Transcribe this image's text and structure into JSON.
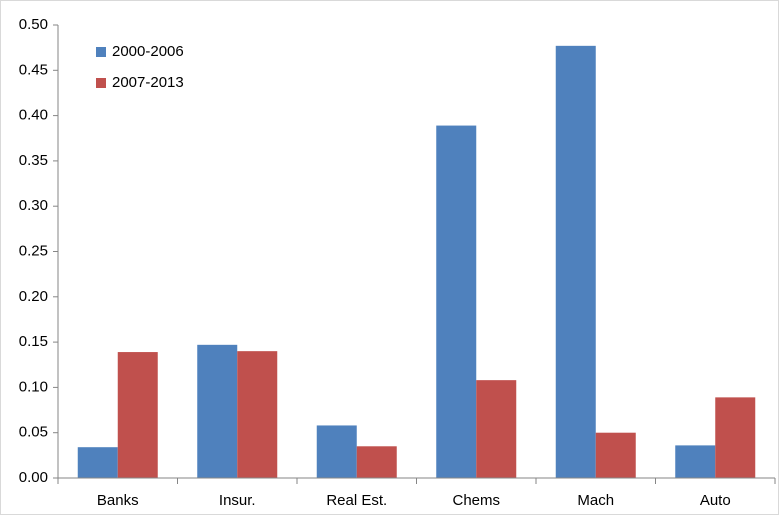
{
  "chart_data": {
    "type": "bar",
    "categories": [
      "Banks",
      "Insur.",
      "Real Est.",
      "Chems",
      "Mach",
      "Auto"
    ],
    "series": [
      {
        "name": "2000-2006",
        "color": "#4f81bd",
        "values": [
          0.034,
          0.147,
          0.058,
          0.389,
          0.477,
          0.036
        ]
      },
      {
        "name": "2007-2013",
        "color": "#c0504d",
        "values": [
          0.139,
          0.14,
          0.035,
          0.108,
          0.05,
          0.089
        ]
      }
    ],
    "ylim": [
      0,
      0.5
    ],
    "yticks": [
      {
        "value": 0,
        "label": "0.00"
      },
      {
        "value": 0.05,
        "label": "0.05"
      },
      {
        "value": 0.1,
        "label": "0.10"
      },
      {
        "value": 0.15,
        "label": "0.15"
      },
      {
        "value": 0.2,
        "label": "0.20"
      },
      {
        "value": 0.25,
        "label": "0.25"
      },
      {
        "value": 0.3,
        "label": "0.30"
      },
      {
        "value": 0.35,
        "label": "0.35"
      },
      {
        "value": 0.4,
        "label": "0.40"
      },
      {
        "value": 0.45,
        "label": "0.45"
      },
      {
        "value": 0.5,
        "label": "0.50"
      }
    ],
    "grid": false,
    "legend": "upper-left"
  }
}
